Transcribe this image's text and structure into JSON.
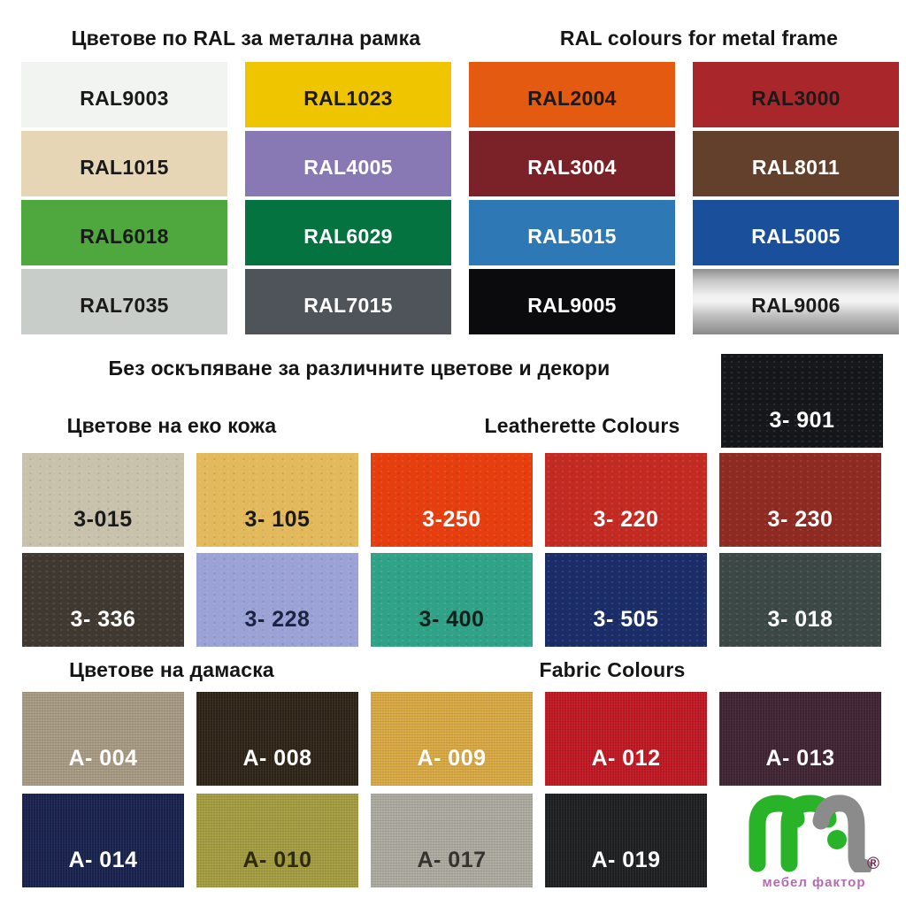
{
  "ral_section": {
    "title_bg": "Цветове по RAL за метална рамка",
    "title_en": "RAL colours for metal frame",
    "swatches": [
      {
        "label": "RAL9003",
        "bg": "#f1f4f1",
        "text": "#1a1a1a"
      },
      {
        "label": "RAL1023",
        "bg": "#efc500",
        "text": "#1a1a1a"
      },
      {
        "label": "RAL2004",
        "bg": "#e35a10",
        "text": "#1a1a1a"
      },
      {
        "label": "RAL3000",
        "bg": "#a9272a",
        "text": "#1a1a1a"
      },
      {
        "label": "RAL1015",
        "bg": "#e6d6b5",
        "text": "#1a1a1a"
      },
      {
        "label": "RAL4005",
        "bg": "#8878b3",
        "text": "#ffffff"
      },
      {
        "label": "RAL3004",
        "bg": "#7b2128",
        "text": "#ffffff"
      },
      {
        "label": "RAL8011",
        "bg": "#62402b",
        "text": "#ffffff"
      },
      {
        "label": "RAL6018",
        "bg": "#4fa83d",
        "text": "#1a1a1a"
      },
      {
        "label": "RAL6029",
        "bg": "#047340",
        "text": "#ffffff"
      },
      {
        "label": "RAL5015",
        "bg": "#2e79b5",
        "text": "#ffffff"
      },
      {
        "label": "RAL5005",
        "bg": "#1a4f9c",
        "text": "#ffffff"
      },
      {
        "label": "RAL7035",
        "bg": "#c9cdca",
        "text": "#1a1a1a"
      },
      {
        "label": "RAL7015",
        "bg": "#4f545b",
        "text": "#ffffff"
      },
      {
        "label": "RAL9005",
        "bg": "#0b0b0d",
        "text": "#ffffff"
      },
      {
        "label": "RAL9006",
        "bg": "#c7c7c7",
        "text": "#1a1a1a",
        "metallic": true
      }
    ]
  },
  "no_surcharge_title": "Без оскъпяване за различните цветове и декори",
  "leatherette_section": {
    "title_bg": "Цветове на еко кожа",
    "title_en": "Leatherette Colours",
    "corner": [
      {
        "label": "3- 901",
        "bg": "#15171b",
        "text": "#ffffff"
      }
    ],
    "swatches": [
      {
        "label": "3-015",
        "bg": "#c8c1ac",
        "text": "#1a1a1a"
      },
      {
        "label": "3- 105",
        "bg": "#e2b95b",
        "text": "#1a1a1a"
      },
      {
        "label": "3-250",
        "bg": "#e63e0f",
        "text": "#ffffff"
      },
      {
        "label": "3- 220",
        "bg": "#c32b22",
        "text": "#ffffff"
      },
      {
        "label": "3- 230",
        "bg": "#8f2a22",
        "text": "#ffffff"
      },
      {
        "label": "3- 336",
        "bg": "#403931",
        "text": "#ffffff"
      },
      {
        "label": "3- 228",
        "bg": "#9aa2d6",
        "text": "#1d2442"
      },
      {
        "label": "3- 400",
        "bg": "#30a287",
        "text": "#10201c"
      },
      {
        "label": "3- 505",
        "bg": "#1b2d68",
        "text": "#ffffff"
      },
      {
        "label": "3- 018",
        "bg": "#3c4845",
        "text": "#ffffff"
      }
    ]
  },
  "fabric_section": {
    "title_bg": "Цветове на дамаска",
    "title_en": "Fabric Colours",
    "swatches": [
      {
        "label": "A- 004",
        "bg": "#a79a83",
        "text": "#ffffff"
      },
      {
        "label": "A- 008",
        "bg": "#2e2417",
        "text": "#ffffff"
      },
      {
        "label": "A- 009",
        "bg": "#d8a843",
        "text": "#ffffff"
      },
      {
        "label": "A- 012",
        "bg": "#c01823",
        "text": "#ffffff"
      },
      {
        "label": "A- 013",
        "bg": "#402433",
        "text": "#ffffff"
      },
      {
        "label": "A- 014",
        "bg": "#18224d",
        "text": "#ffffff"
      },
      {
        "label": "A- 010",
        "bg": "#a49c40",
        "text": "#2e2a10"
      },
      {
        "label": "A- 017",
        "bg": "#acaa9f",
        "text": "#34332d"
      },
      {
        "label": "A- 019",
        "bg": "#1d1f21",
        "text": "#ffffff"
      }
    ]
  },
  "logo": {
    "caption": "мебел фактор",
    "registered": "®",
    "green": "#29b329",
    "grey": "#8b8b8b",
    "purple": "#b36bb3",
    "reg_color": "#7b2556"
  }
}
